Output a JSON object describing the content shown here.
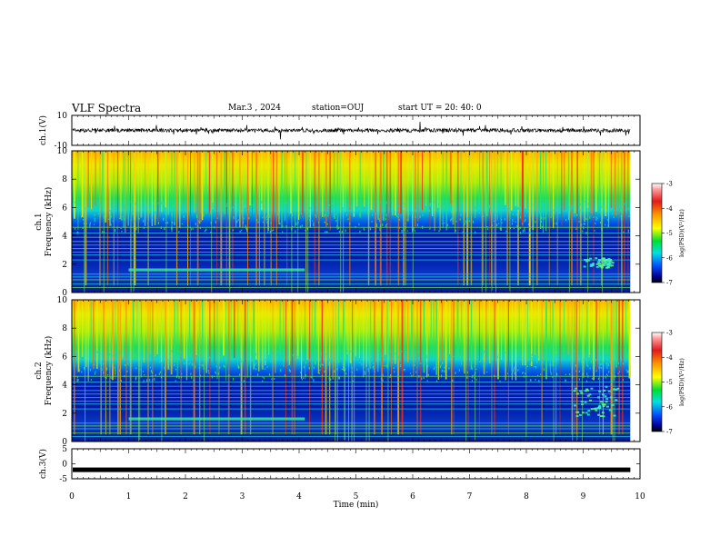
{
  "header": {
    "title": "VLF Spectra",
    "date": "Mar.3 , 2024",
    "station": "station=OUJ",
    "start": "start UT = 20: 40: 0"
  },
  "chart_data": [
    {
      "type": "line",
      "panel": "ch1-waveform",
      "ylabel": "ch.1(V)",
      "ylim": [
        -10,
        10
      ],
      "yticks": [
        "10",
        "-10"
      ],
      "xlim": [
        0,
        10
      ],
      "baseline": 0,
      "color": "#000000"
    },
    {
      "type": "heatmap",
      "panel": "ch1-spectrogram",
      "ylabel_line1": "ch.1",
      "ylabel_line2": "Frequency (kHz)",
      "ylim": [
        0,
        10
      ],
      "yticks": [
        "0",
        "2",
        "4",
        "6",
        "8",
        "10"
      ],
      "xlim": [
        0,
        10
      ],
      "data_end_min": 9.83,
      "colorbar": {
        "label": "log(PSD)(V²/Hz)",
        "range": [
          -7,
          -3
        ],
        "ticks": [
          "-3",
          "-4",
          "-5",
          "-6",
          "-7"
        ]
      },
      "features": {
        "noise_floor_khz": 5.0,
        "band_khz": [
          1.5,
          1.7
        ],
        "band_extent_min": [
          1.0,
          4.1
        ],
        "burst_min": [
          9.0,
          9.5
        ],
        "burst_khz": [
          1.8,
          2.5
        ]
      }
    },
    {
      "type": "heatmap",
      "panel": "ch2-spectrogram",
      "ylabel_line1": "ch.2",
      "ylabel_line2": "Frequency (kHz)",
      "ylim": [
        0,
        10
      ],
      "yticks": [
        "0",
        "2",
        "4",
        "6",
        "8",
        "10"
      ],
      "xlim": [
        0,
        10
      ],
      "data_end_min": 9.83,
      "colorbar": {
        "label": "log(PSD)(V²/Hz)",
        "range": [
          -7,
          -3
        ],
        "ticks": [
          "-3",
          "-4",
          "-5",
          "-6",
          "-7"
        ]
      },
      "features": {
        "noise_floor_khz": 5.0,
        "band_khz": [
          1.5,
          1.7
        ],
        "band_extent_min": [
          1.0,
          4.1
        ],
        "burst_min": [
          8.8,
          9.6
        ],
        "burst_khz": [
          1.8,
          4.2
        ]
      }
    },
    {
      "type": "line",
      "panel": "ch3-waveform",
      "ylabel": "ch.3(V)",
      "ylim": [
        -5,
        5
      ],
      "yticks": [
        "5",
        "0",
        "-5"
      ],
      "xlim": [
        0,
        10
      ],
      "baseline": -2,
      "color": "#000000",
      "xlabel": "Time (min)",
      "xticks": [
        "0",
        "1",
        "2",
        "3",
        "4",
        "5",
        "6",
        "7",
        "8",
        "9",
        "10"
      ]
    }
  ]
}
